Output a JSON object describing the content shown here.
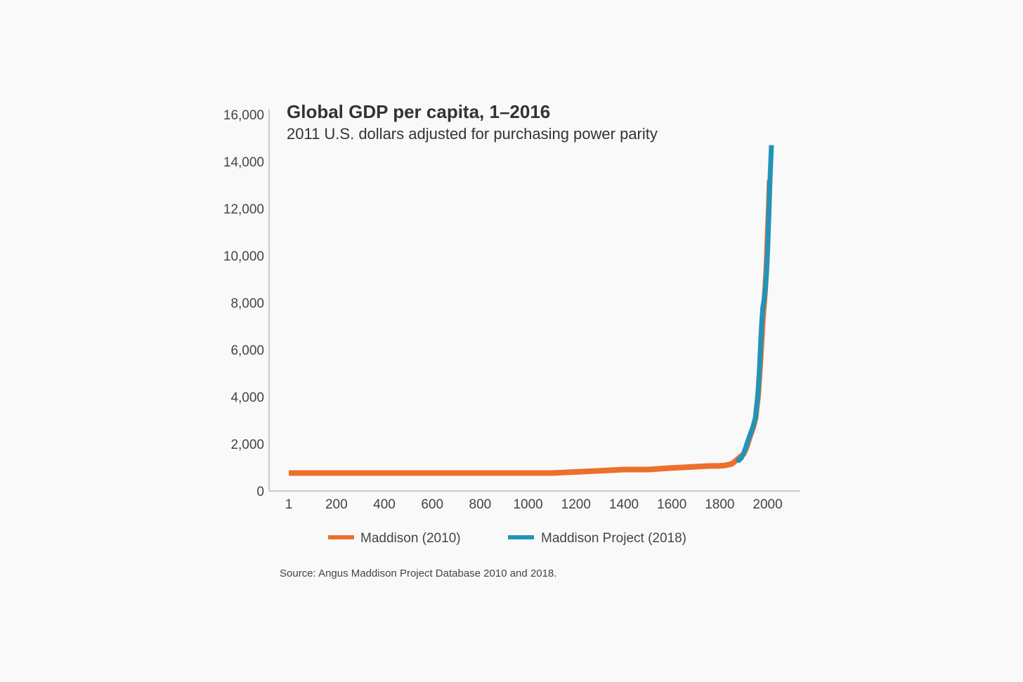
{
  "chart_data": {
    "type": "line",
    "title": "Global GDP per capita, 1–2016",
    "subtitle": "2011 U.S. dollars adjusted for purchasing power parity",
    "xlabel": "",
    "ylabel": "",
    "xlim": [
      1,
      2016
    ],
    "ylim": [
      0,
      16000
    ],
    "x_ticks": [
      1,
      200,
      400,
      600,
      800,
      1000,
      1200,
      1400,
      1600,
      1800,
      2000
    ],
    "x_tick_labels": [
      "1",
      "200",
      "400",
      "600",
      "800",
      "1000",
      "1200",
      "1400",
      "1600",
      "1800",
      "2000"
    ],
    "y_ticks": [
      0,
      2000,
      4000,
      6000,
      8000,
      10000,
      12000,
      14000,
      16000
    ],
    "y_tick_labels": [
      "0",
      "2,000",
      "4,000",
      "6,000",
      "8,000",
      "10,000",
      "12,000",
      "14,000",
      "16,000"
    ],
    "grid": false,
    "legend_position": "bottom",
    "series": [
      {
        "name": "Maddison (2010)",
        "color": "#ec6f2c",
        "points": [
          [
            1,
            760
          ],
          [
            200,
            760
          ],
          [
            400,
            760
          ],
          [
            600,
            760
          ],
          [
            800,
            760
          ],
          [
            1000,
            760
          ],
          [
            1100,
            760
          ],
          [
            1200,
            810
          ],
          [
            1300,
            860
          ],
          [
            1400,
            910
          ],
          [
            1500,
            910
          ],
          [
            1600,
            980
          ],
          [
            1700,
            1030
          ],
          [
            1750,
            1060
          ],
          [
            1800,
            1070
          ],
          [
            1820,
            1080
          ],
          [
            1850,
            1150
          ],
          [
            1870,
            1310
          ],
          [
            1900,
            1580
          ],
          [
            1913,
            1880
          ],
          [
            1929,
            2390
          ],
          [
            1940,
            2720
          ],
          [
            1950,
            3100
          ],
          [
            1955,
            3600
          ],
          [
            1960,
            4000
          ],
          [
            1965,
            4750
          ],
          [
            1970,
            5500
          ],
          [
            1975,
            6400
          ],
          [
            1980,
            7300
          ],
          [
            1985,
            7900
          ],
          [
            1990,
            8600
          ],
          [
            1995,
            9500
          ],
          [
            2000,
            10800
          ],
          [
            2005,
            12100
          ],
          [
            2008,
            13200
          ]
        ]
      },
      {
        "name": "Maddison Project (2018)",
        "color": "#2394b8",
        "points": [
          [
            1870,
            1350
          ],
          [
            1880,
            1300
          ],
          [
            1890,
            1400
          ],
          [
            1900,
            1600
          ],
          [
            1910,
            1900
          ],
          [
            1920,
            2200
          ],
          [
            1929,
            2450
          ],
          [
            1938,
            2700
          ],
          [
            1945,
            2950
          ],
          [
            1950,
            3150
          ],
          [
            1955,
            3650
          ],
          [
            1960,
            4200
          ],
          [
            1965,
            5000
          ],
          [
            1970,
            6100
          ],
          [
            1975,
            7100
          ],
          [
            1980,
            7800
          ],
          [
            1985,
            8100
          ],
          [
            1990,
            8550
          ],
          [
            1995,
            9200
          ],
          [
            2000,
            10200
          ],
          [
            2005,
            11700
          ],
          [
            2010,
            13300
          ],
          [
            2016,
            14700
          ]
        ]
      }
    ],
    "source": "Source: Angus Maddison Project Database 2010 and 2018."
  }
}
